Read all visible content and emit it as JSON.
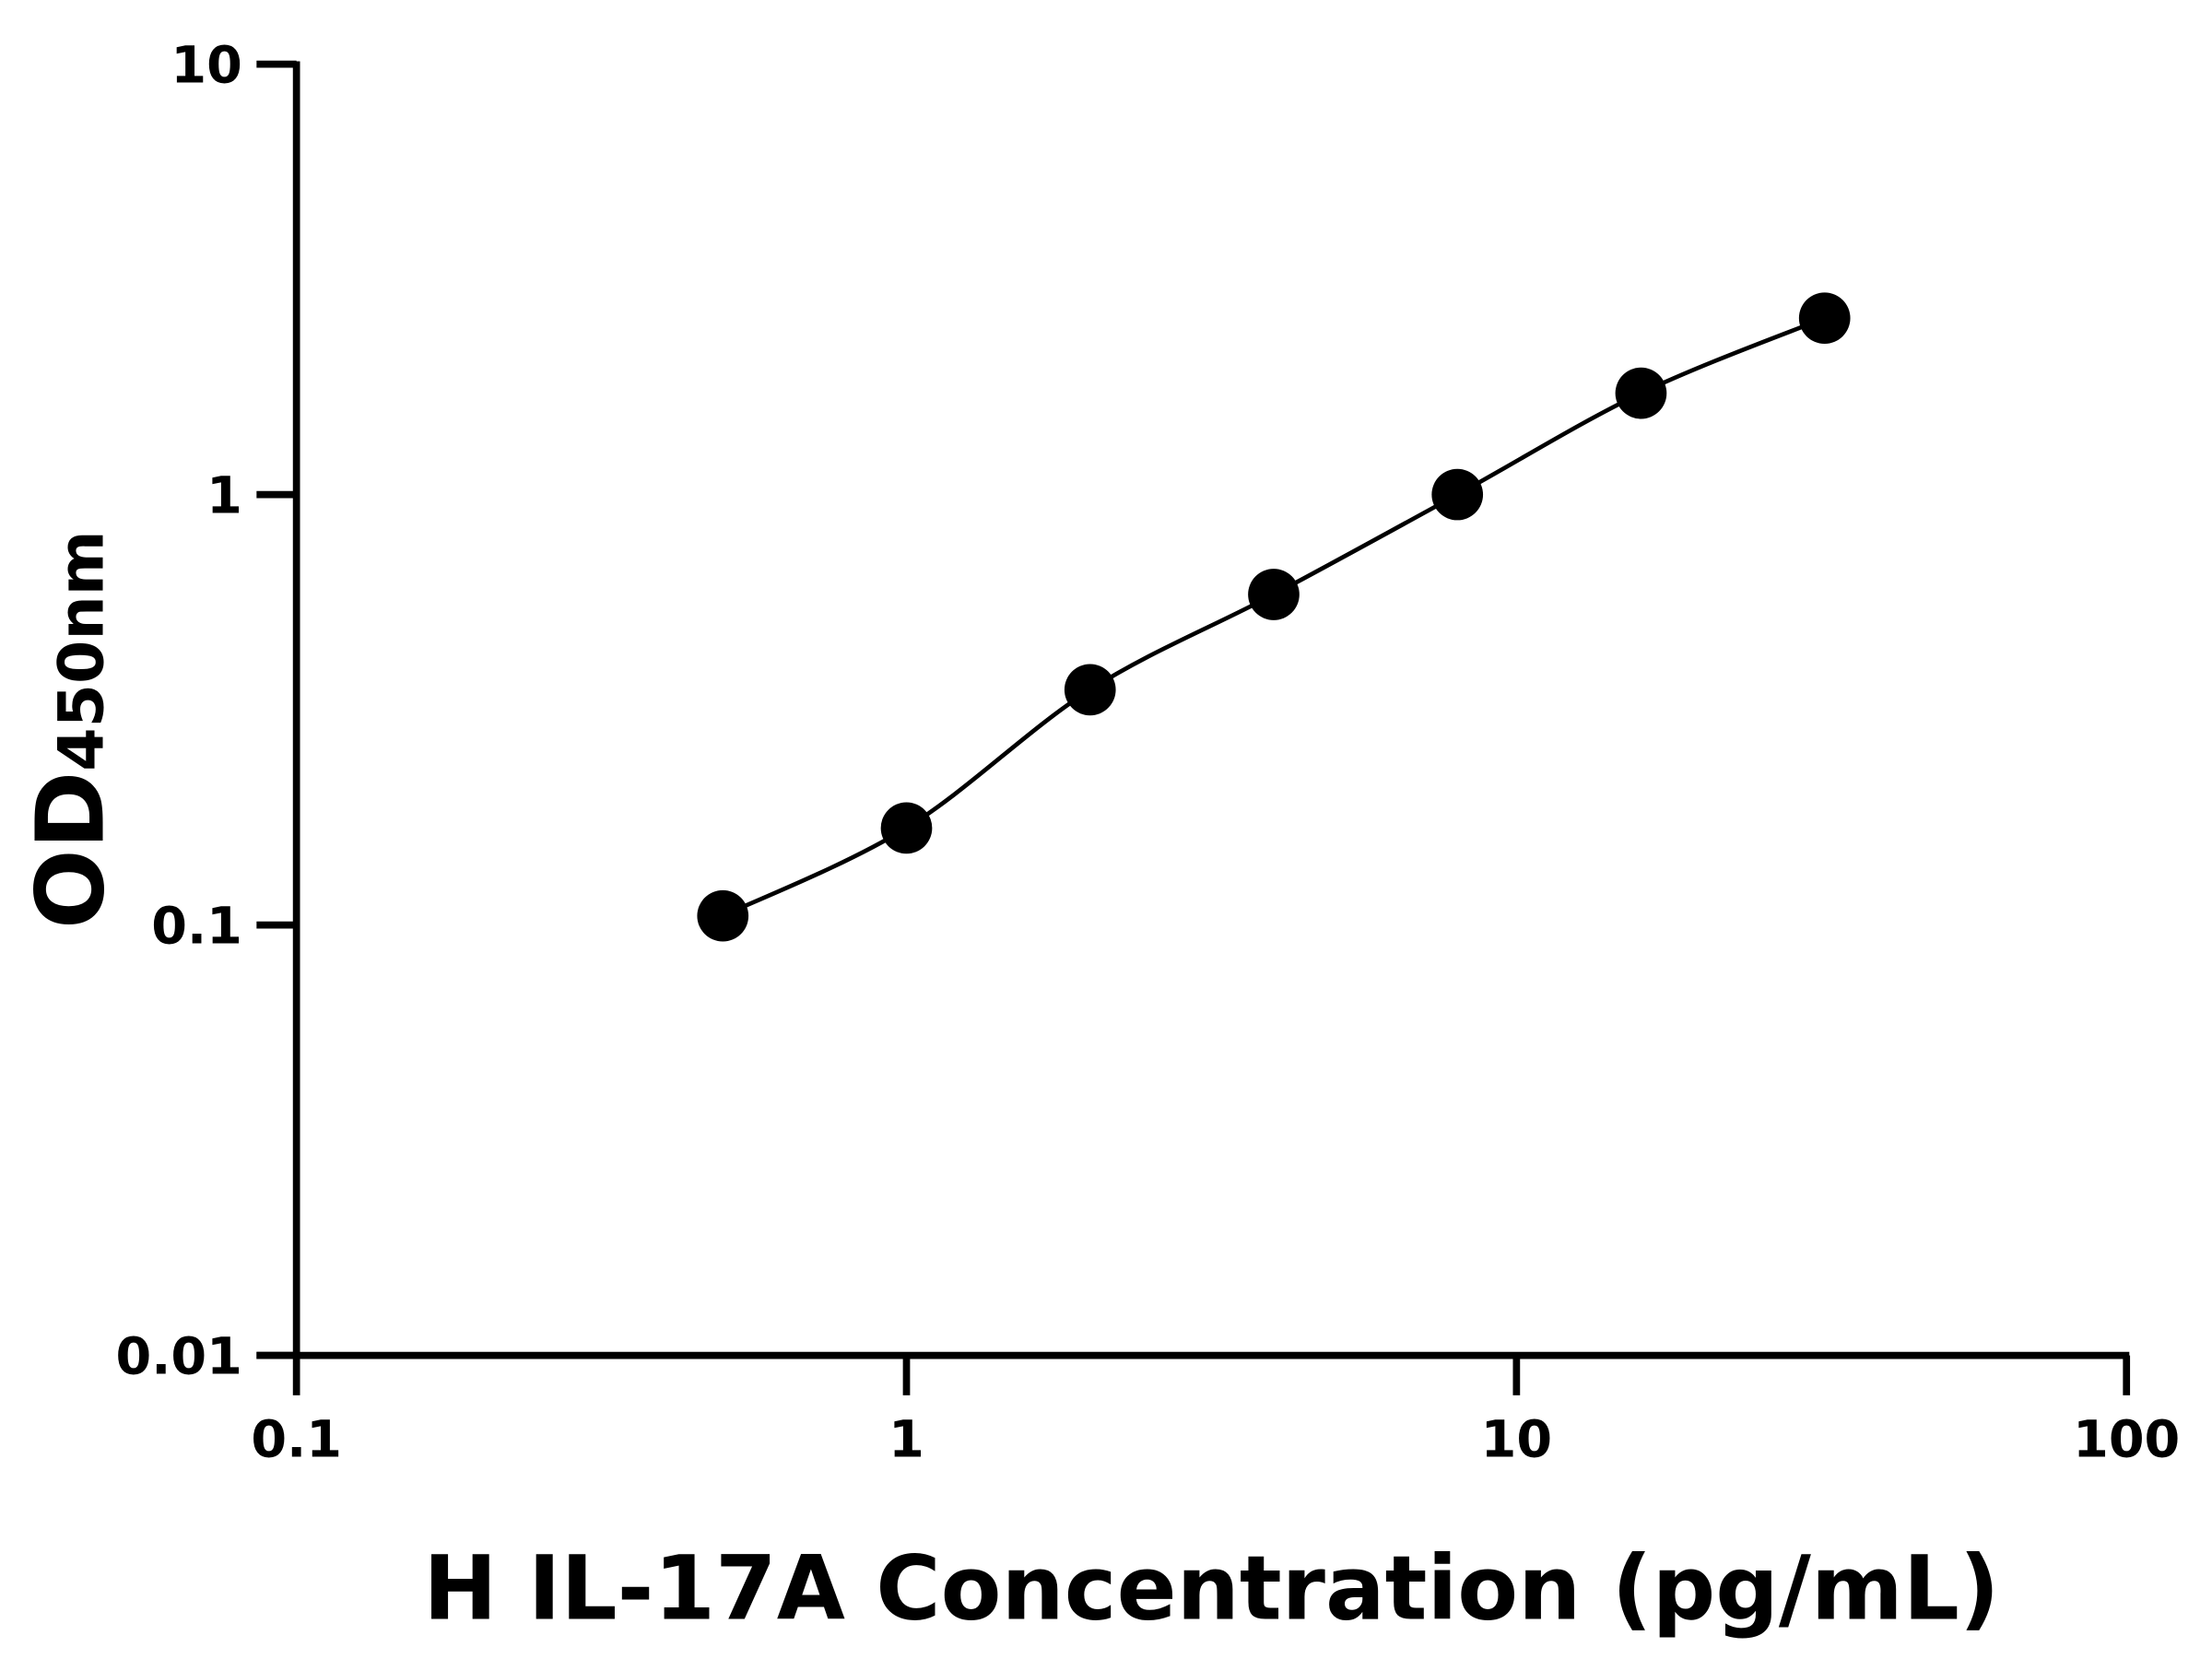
{
  "chart_data": {
    "type": "line",
    "x_label": "H IL-17A Concentration (pg/mL)",
    "y_label": "OD",
    "y_label_sub": "450nm",
    "x": [
      0.5,
      1,
      2,
      4,
      8,
      16,
      32
    ],
    "series": [
      {
        "color": "#000000",
        "values": [
          0.105,
          0.168,
          0.352,
          0.586,
          1.0,
          1.72,
          2.57
        ]
      }
    ],
    "xscale": "log",
    "yscale": "log",
    "xlim": [
      0.1,
      100
    ],
    "xticks": [
      0.1,
      1,
      10,
      100
    ],
    "ylim": [
      0.01,
      10
    ],
    "yticks": [
      0.01,
      0.1,
      1,
      10
    ],
    "grid": false
  }
}
